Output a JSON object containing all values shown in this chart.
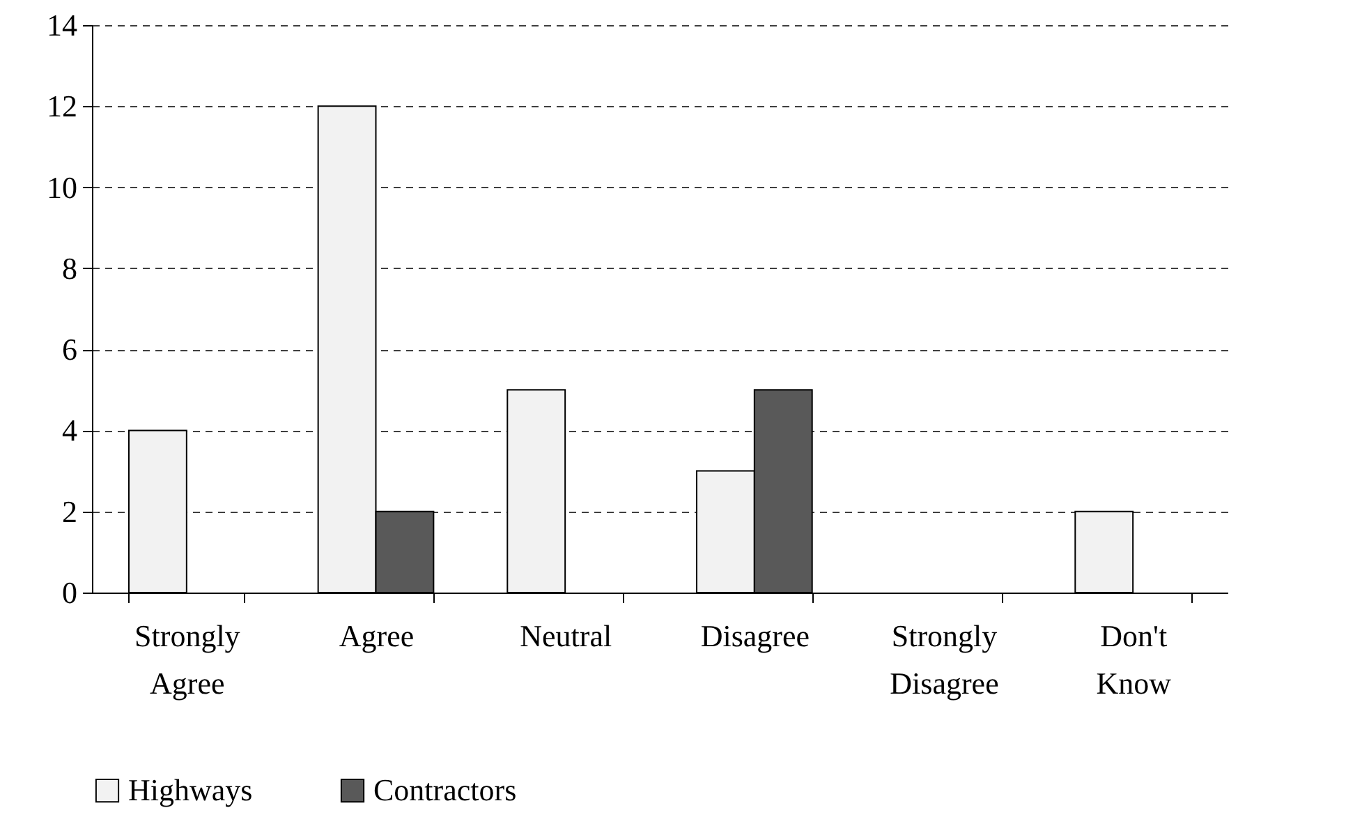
{
  "chart_data": {
    "type": "bar",
    "categories": [
      "Strongly Agree",
      "Agree",
      "Neutral",
      "Disagree",
      "Strongly Disagree",
      "Don't Know"
    ],
    "series": [
      {
        "name": "Highways",
        "color": "#f2f2f2",
        "values": [
          4,
          12,
          5,
          3,
          0,
          2
        ]
      },
      {
        "name": "Contractors",
        "color": "#595959",
        "values": [
          0,
          2,
          0,
          5,
          0,
          0
        ]
      }
    ],
    "ylim": [
      0,
      14
    ],
    "yticks": [
      0,
      2,
      4,
      6,
      8,
      10,
      12,
      14
    ],
    "grid": "y",
    "legend": "bottom"
  }
}
